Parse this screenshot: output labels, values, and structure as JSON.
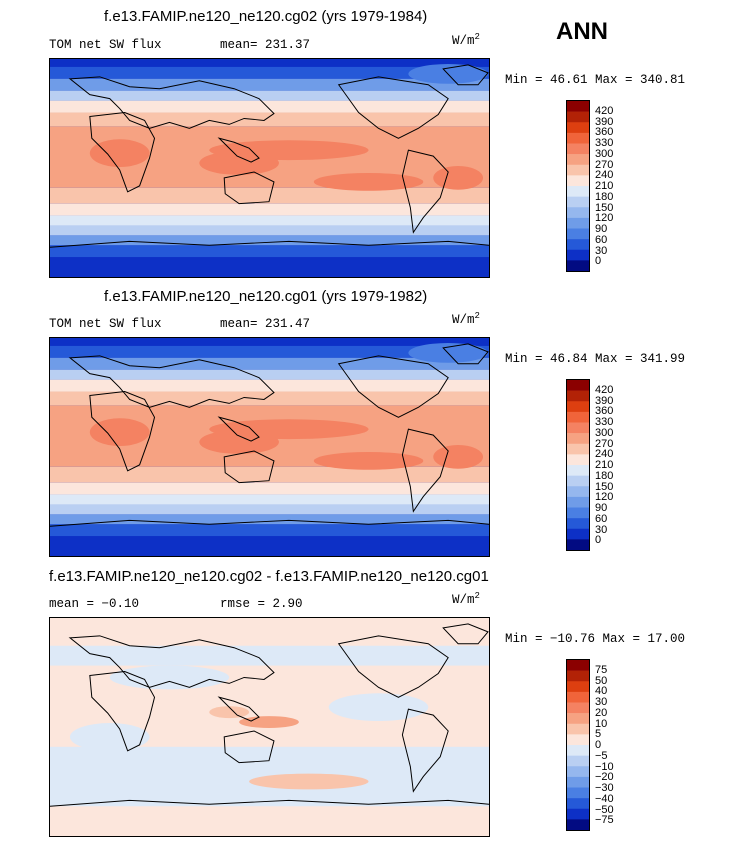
{
  "season": "ANN",
  "units_base": "W/m",
  "units_exp": "2",
  "panels": [
    {
      "title": "f.e13.FAMIP.ne120_ne120.cg02 (yrs 1979-1984)",
      "left_label": "TOM net SW flux",
      "right_label": "mean= 231.37",
      "minmax": "Min =  46.61 Max = 340.81",
      "levels": [
        "420",
        "390",
        "360",
        "330",
        "300",
        "270",
        "240",
        "210",
        "180",
        "150",
        "120",
        "90",
        "60",
        "30",
        "0"
      ],
      "colors": [
        "#8b0000",
        "#b22206",
        "#dd3f10",
        "#f0643a",
        "#f48262",
        "#f6a282",
        "#f9c4ab",
        "#fce6dc",
        "#dde9f7",
        "#b9cff2",
        "#95b7ee",
        "#6f9ce8",
        "#4a7fe3",
        "#2559d8",
        "#0d30c6",
        "#020b82"
      ]
    },
    {
      "title": "f.e13.FAMIP.ne120_ne120.cg01 (yrs 1979-1982)",
      "left_label": "TOM net SW flux",
      "right_label": "mean= 231.47",
      "minmax": "Min =  46.84 Max = 341.99",
      "levels": [
        "420",
        "390",
        "360",
        "330",
        "300",
        "270",
        "240",
        "210",
        "180",
        "150",
        "120",
        "90",
        "60",
        "30",
        "0"
      ],
      "colors": [
        "#8b0000",
        "#b22206",
        "#dd3f10",
        "#f0643a",
        "#f48262",
        "#f6a282",
        "#f9c4ab",
        "#fce6dc",
        "#dde9f7",
        "#b9cff2",
        "#95b7ee",
        "#6f9ce8",
        "#4a7fe3",
        "#2559d8",
        "#0d30c6",
        "#020b82"
      ]
    },
    {
      "title": "f.e13.FAMIP.ne120_ne120.cg02 - f.e13.FAMIP.ne120_ne120.cg01",
      "left_label": "mean =  −0.10",
      "right_label": "rmse =    2.90",
      "minmax": "Min = −10.76 Max =  17.00",
      "levels": [
        "75",
        "50",
        "40",
        "30",
        "20",
        "10",
        "5",
        "0",
        "−5",
        "−10",
        "−20",
        "−30",
        "−40",
        "−50",
        "−75"
      ],
      "colors": [
        "#8b0000",
        "#b22206",
        "#dd3f10",
        "#f0643a",
        "#f48262",
        "#f6a282",
        "#f9c4ab",
        "#fce6dc",
        "#dde9f7",
        "#b9cff2",
        "#95b7ee",
        "#6f9ce8",
        "#4a7fe3",
        "#2559d8",
        "#0d30c6",
        "#020b82"
      ]
    }
  ],
  "chart_data": [
    {
      "type": "heatmap",
      "title": "f.e13.FAMIP.ne120_ne120.cg02 (yrs 1979-1984)",
      "variable": "TOM net SW flux",
      "units": "W/m2",
      "mean": 231.37,
      "min": 46.61,
      "max": 340.81,
      "contour_levels": [
        0,
        30,
        60,
        90,
        120,
        150,
        180,
        210,
        240,
        270,
        300,
        330,
        360,
        390,
        420
      ]
    },
    {
      "type": "heatmap",
      "title": "f.e13.FAMIP.ne120_ne120.cg01 (yrs 1979-1982)",
      "variable": "TOM net SW flux",
      "units": "W/m2",
      "mean": 231.47,
      "min": 46.84,
      "max": 341.99,
      "contour_levels": [
        0,
        30,
        60,
        90,
        120,
        150,
        180,
        210,
        240,
        270,
        300,
        330,
        360,
        390,
        420
      ]
    },
    {
      "type": "heatmap",
      "title": "f.e13.FAMIP.ne120_ne120.cg02 - f.e13.FAMIP.ne120_ne120.cg01",
      "units": "W/m2",
      "mean": -0.1,
      "rmse": 2.9,
      "min": -10.76,
      "max": 17.0,
      "contour_levels": [
        -75,
        -50,
        -40,
        -30,
        -20,
        -10,
        -5,
        0,
        5,
        10,
        20,
        30,
        40,
        50,
        75
      ]
    }
  ]
}
